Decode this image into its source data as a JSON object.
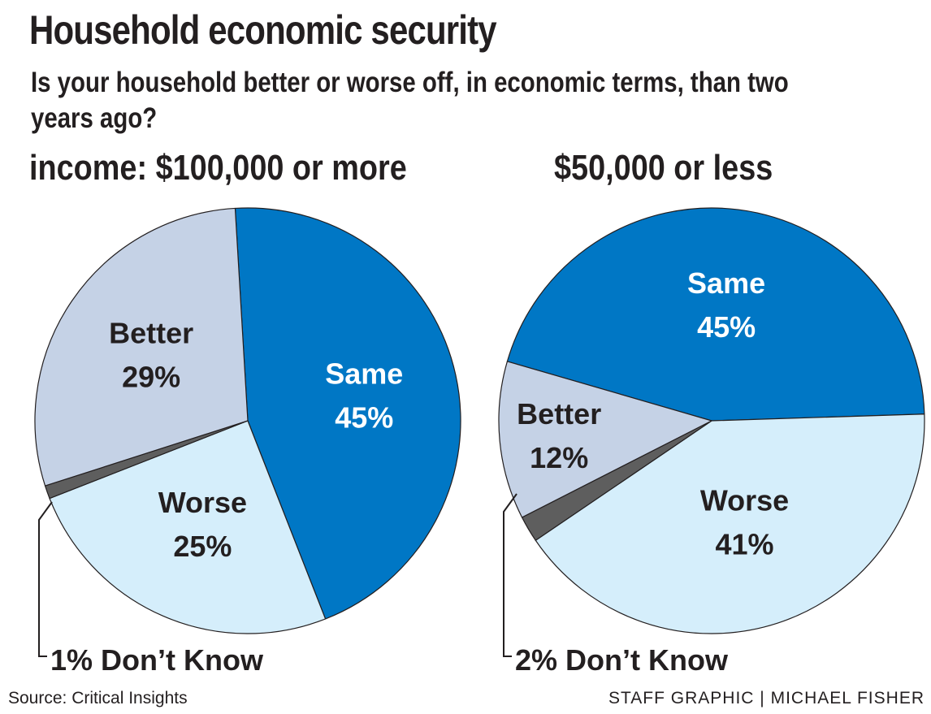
{
  "title": "Household economic security",
  "subtitle": "Is your household better or worse off, in economic terms, than two years ago?",
  "colors": {
    "same": "#0077c5",
    "better": "#c5d2e6",
    "worse": "#d5eefb",
    "dont_know": "#5e5e5e",
    "text_dark": "#231f20",
    "text_light": "#ffffff"
  },
  "chart_data": [
    {
      "type": "pie",
      "title": "income: $100,000 or more",
      "slices": [
        {
          "label": "Same",
          "value": 45,
          "value_label": "45%"
        },
        {
          "label": "Worse",
          "value": 25,
          "value_label": "25%"
        },
        {
          "label": "Don’t Know",
          "value": 1,
          "value_label": "1%"
        },
        {
          "label": "Better",
          "value": 29,
          "value_label": "29%"
        }
      ],
      "callout": "1% Don’t Know"
    },
    {
      "type": "pie",
      "title": "$50,000 or less",
      "slices": [
        {
          "label": "Same",
          "value": 45,
          "value_label": "45%"
        },
        {
          "label": "Worse",
          "value": 41,
          "value_label": "41%"
        },
        {
          "label": "Don’t Know",
          "value": 2,
          "value_label": "2%"
        },
        {
          "label": "Better",
          "value": 12,
          "value_label": "12%"
        }
      ],
      "callout": "2% Don’t Know"
    }
  ],
  "footer": {
    "source": "Source: Critical Insights",
    "credit": "STAFF GRAPHIC | MICHAEL FISHER"
  }
}
